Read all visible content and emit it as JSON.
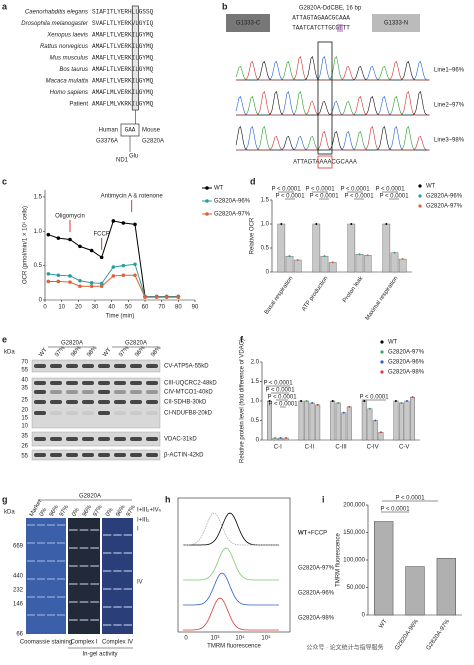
{
  "panel_labels": [
    "a",
    "b",
    "c",
    "d",
    "e",
    "f",
    "g",
    "h",
    "i"
  ],
  "alignment": {
    "rows": [
      {
        "species": "Caenorhabditis elegans",
        "sequence": "SIAFITLYERHLLGSSQ"
      },
      {
        "species": "Drosophila melanogaster",
        "sequence": "SVAFLTLYERKVLGYIQ"
      },
      {
        "species": "Xenopus laevis",
        "sequence": "AMAFLTLVERKILGYMQ"
      },
      {
        "species": "Rattus norvegicus",
        "sequence": "AMAFLTLVERKILGYMQ"
      },
      {
        "species": "Mus musculus",
        "sequence": "AMAFLTLVERKILGYMQ"
      },
      {
        "species": "Bos taurus",
        "sequence": "AMAFLTLVERKILGYMQ"
      },
      {
        "species": "Macaca mulatta",
        "sequence": "AMAFLTLVERKILGYMQ"
      },
      {
        "species": "Homo sapiens",
        "sequence": "AMAFLMLVERKILGYMQ"
      },
      {
        "species": "Patient",
        "sequence": "AMAFLMLVKRKILGYMQ"
      }
    ],
    "human": "Human",
    "mouse": "Mouse",
    "codon": "GAA",
    "human_variant": "G3376A",
    "mouse_variant": "G2820A",
    "gene": "ND1",
    "residue": "Glu"
  },
  "sequencing": {
    "title": "G2820A-DdCBE, 16 bp",
    "left": "G1333-C",
    "right": "G1333-N",
    "top_strand": "ATTAGTAGAACGCAAA",
    "bottom_strand": "TAATCATCTTGCGTTT",
    "lines": [
      "Line1–96%",
      "Line2–97%",
      "Line3–98%"
    ],
    "result": "ATTAGTAAAACGCAAA"
  },
  "western_blot": {
    "groups": [
      "G2820A",
      "G2820A"
    ],
    "kda": "kDa",
    "lanes": [
      "WT",
      "97%",
      "96%",
      "98%",
      "WT",
      "97%",
      "96%",
      "98%"
    ],
    "markers": [
      "70",
      "55",
      "40",
      "35",
      "25",
      "20",
      "15",
      "10",
      "35",
      "26",
      "55"
    ],
    "bands": [
      "CV-ATP5A-55kD",
      "CIII-UQCRC2-48kD",
      "CIV-MTCO1-40kD",
      "CII-SDHB-30kD",
      "CI-NDUFB8-20kD",
      "VDAC-31kD",
      "β-ACTIN-42kD"
    ]
  },
  "native_gel": {
    "group": "G2820A",
    "kda": "kDa",
    "lanes": [
      "Marker",
      "0%",
      "96%",
      "97%",
      "0%",
      "96%",
      "97%",
      "0%",
      "96%",
      "97%"
    ],
    "markers": [
      "669",
      "440",
      "232",
      "146",
      "66"
    ],
    "complexes": [
      "I+III₂+IVₙ",
      "I+III₂",
      "I",
      "IV"
    ],
    "sections": [
      "Coomassie staining",
      "Complex I",
      "Complex IV"
    ],
    "subtitle": "In-gel activity"
  },
  "flow": {
    "labels": [
      "WT",
      "WT+FCCP",
      "G2820A-97%",
      "G2820A-96%",
      "G2820A-98%"
    ],
    "x_label": "TMRM fluorescence",
    "x_ticks": [
      "0",
      "10³",
      "10⁴",
      "10⁵"
    ]
  },
  "watermark": "公众号 · 论文统计与指导服务",
  "chart_data": [
    {
      "type": "line",
      "x_label": "Time (min)",
      "y_label": "OCR (pmol/min/1 × 10⁴ cells)",
      "annotations": [
        "Oligomycin",
        "FCCP",
        "Antimycin A & rotenone"
      ],
      "x": [
        2,
        8,
        15,
        21,
        28,
        34,
        41,
        47,
        54,
        60,
        67,
        73,
        80
      ],
      "series": [
        {
          "name": "WT",
          "color": "#000000",
          "values": [
            0.95,
            0.9,
            0.88,
            0.78,
            0.72,
            0.62,
            1.15,
            1.12,
            1.1,
            0.05,
            0.05,
            0.05,
            0.05
          ]
        },
        {
          "name": "G2820A-96%",
          "color": "#2a9d9d",
          "values": [
            0.38,
            0.36,
            0.35,
            0.28,
            0.25,
            0.24,
            0.48,
            0.5,
            0.52,
            0.05,
            0.05,
            0.05,
            0.05
          ]
        },
        {
          "name": "G2820A-97%",
          "color": "#e0603a",
          "values": [
            0.27,
            0.27,
            0.26,
            0.2,
            0.2,
            0.2,
            0.35,
            0.36,
            0.36,
            0.04,
            0.04,
            0.04,
            0.04
          ]
        }
      ],
      "xlim": [
        0,
        90
      ],
      "xticks": [
        0,
        10,
        20,
        30,
        40,
        50,
        60,
        70,
        80,
        90
      ],
      "ylim": [
        0,
        1.6
      ],
      "yticks": [
        0,
        0.5,
        {
          "value": 1,
          "label": "1.0"
        },
        1.5
      ]
    },
    {
      "type": "bar",
      "y_label": "Relative OCR",
      "bar_color": "#c8c8c8",
      "annotations": [
        "P < 0.0001",
        "P < 0.0001",
        "P < 0.0001",
        "P < 0.0001",
        "P < 0.0001",
        "P < 0.0001",
        "P < 0.0001",
        "P < 0.0001"
      ],
      "categories": [
        "Basal respiration",
        "ATP production",
        "Proton leak",
        "Maximal respiration"
      ],
      "series": [
        {
          "name": "WT",
          "color": "#000000",
          "values": [
            1,
            1,
            1,
            1
          ]
        },
        {
          "name": "G2820A-96%",
          "color": "#2a9d9d",
          "values": [
            0.33,
            0.33,
            0.37,
            0.4
          ]
        },
        {
          "name": "G2820A-97%",
          "color": "#e0603a",
          "values": [
            0.25,
            0.2,
            0.35,
            0.27
          ]
        }
      ],
      "ylim": [
        0,
        1.5
      ],
      "yticks": [
        0,
        0.5,
        {
          "value": 1,
          "label": "1.0"
        },
        1.5
      ]
    },
    {
      "type": "bar",
      "y_label": "Relative protein level (fold difference of VDAC)",
      "bar_color": "#c8c8c8",
      "annotations": [
        "P < 0.0001",
        "P < 0.0001",
        "P < 0.0001",
        "P < 0.0001",
        "P < 0.0001"
      ],
      "categories": [
        "C-I",
        "C-II",
        "C-III",
        "C-IV",
        "C-V"
      ],
      "series": [
        {
          "name": "WT",
          "color": "#000000",
          "values": [
            1,
            1,
            1,
            1,
            1
          ]
        },
        {
          "name": "G2820A-97%",
          "color": "#3aa655",
          "values": [
            0.05,
            1,
            0.95,
            0.8,
            0.95
          ]
        },
        {
          "name": "G2820A-96%",
          "color": "#2f5fd0",
          "values": [
            0.05,
            0.95,
            0.7,
            0.5,
            1
          ]
        },
        {
          "name": "G2820A-98%",
          "color": "#e03a3a",
          "values": [
            0.05,
            0.9,
            0.85,
            0.2,
            1.1
          ]
        }
      ],
      "ylim": [
        0,
        2
      ],
      "yticks": [
        0,
        0.5,
        {
          "value": 1,
          "label": "1.0"
        },
        1.5,
        {
          "value": 2,
          "label": "2.0"
        }
      ]
    },
    {
      "type": "bar",
      "y_label": "TMRM fluorescence",
      "color": "#b0b0b0",
      "annotations": [
        "P < 0.0001",
        "P < 0.0001"
      ],
      "categories": [
        "WT",
        "G2820A-96%",
        "G2820A-97%"
      ],
      "values": [
        170000,
        88000,
        103000
      ],
      "ylim": [
        0,
        200000
      ],
      "yticks": [
        0,
        {
          "value": 50000,
          "label": "50,000"
        },
        {
          "value": 100000,
          "label": "100,000"
        },
        {
          "value": 150000,
          "label": "150,000"
        },
        {
          "value": 200000,
          "label": "200,000"
        }
      ]
    }
  ]
}
